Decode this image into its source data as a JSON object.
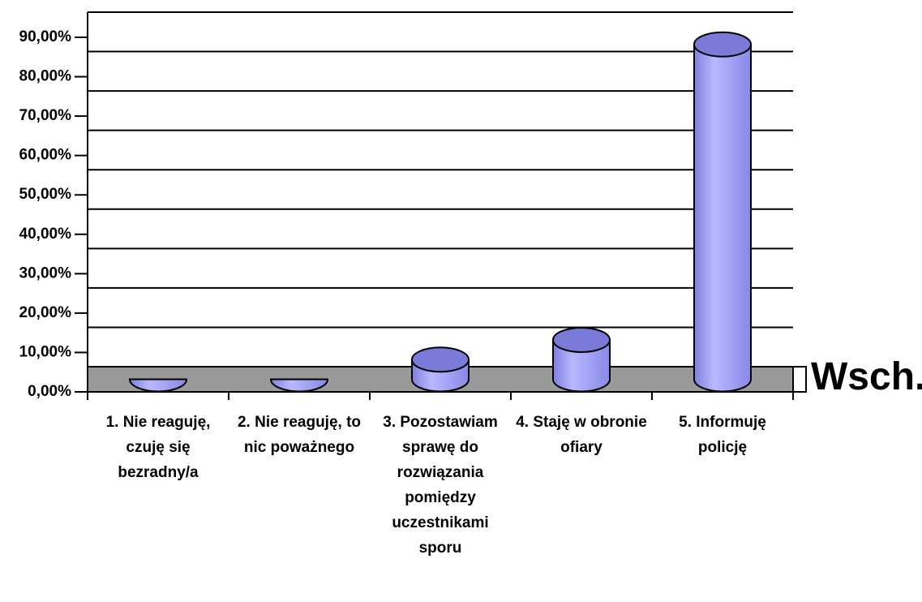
{
  "chart_data": {
    "type": "bar3d",
    "categories": [
      "1. Nie reaguję, czuję się bezradny/a",
      "2. Nie reaguję, to nic poważnego",
      "3. Pozostawiam sprawę do rozwiązania pomiędzy uczestnikami sporu",
      "4.  Staję w obronie ofiary",
      "5. Informuję policję"
    ],
    "series": [
      {
        "name": "Wsch.",
        "color": "#9999ff",
        "values": [
          0,
          0,
          5,
          10,
          85
        ]
      }
    ],
    "ylim": [
      0,
      90
    ],
    "yticks": [
      {
        "value": 0,
        "label": "0,00%"
      },
      {
        "value": 10,
        "label": "10,00%"
      },
      {
        "value": 20,
        "label": "20,00%"
      },
      {
        "value": 30,
        "label": "30,00%"
      },
      {
        "value": 40,
        "label": "40,00%"
      },
      {
        "value": 50,
        "label": "50,00%"
      },
      {
        "value": 60,
        "label": "60,00%"
      },
      {
        "value": 70,
        "label": "70,00%"
      },
      {
        "value": 80,
        "label": "80,00%"
      },
      {
        "value": 90,
        "label": "90,00%"
      }
    ],
    "grid": true
  }
}
